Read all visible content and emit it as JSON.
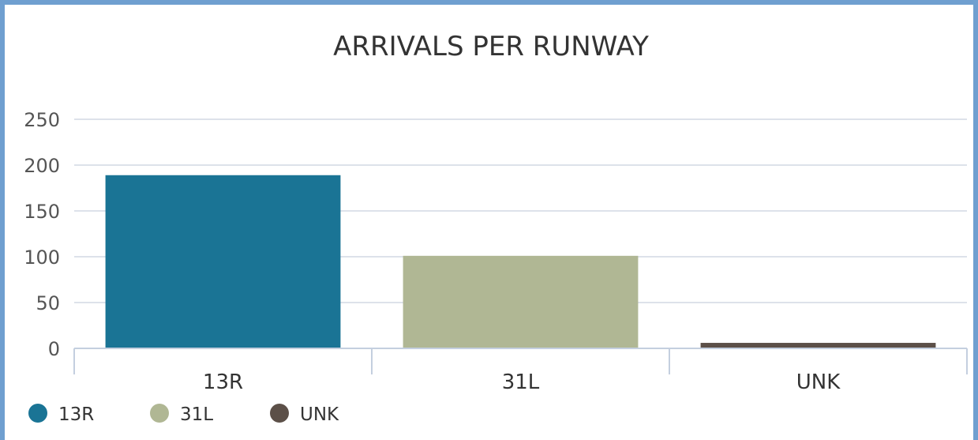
{
  "chart_data": {
    "type": "bar",
    "title": "ARRIVALS PER RUNWAY",
    "categories": [
      "13R",
      "31L",
      "UNK"
    ],
    "values": [
      189,
      101,
      6
    ],
    "colors": [
      "#1a7495",
      "#b0b794",
      "#5c5048"
    ],
    "ylim": [
      0,
      250
    ],
    "yticks": [
      0,
      50,
      100,
      150,
      200,
      250
    ],
    "grid": true,
    "legend": {
      "position": "bottom-left",
      "entries": [
        "13R",
        "31L",
        "UNK"
      ]
    }
  }
}
